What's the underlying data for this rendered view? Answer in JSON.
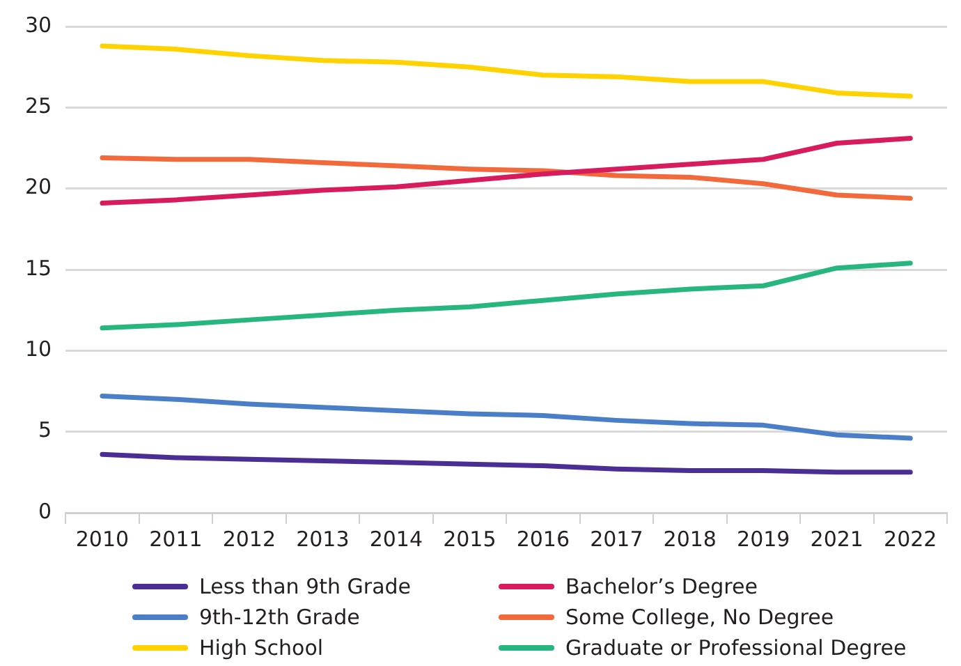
{
  "chart_data": {
    "type": "line",
    "categories": [
      "2010",
      "2011",
      "2012",
      "2013",
      "2014",
      "2015",
      "2016",
      "2017",
      "2018",
      "2019",
      "2021",
      "2022"
    ],
    "series": [
      {
        "name": "Less than 9th Grade",
        "color": "#4b2e94",
        "values": [
          3.6,
          3.4,
          3.3,
          3.2,
          3.1,
          3.0,
          2.9,
          2.7,
          2.6,
          2.6,
          2.5,
          2.5
        ]
      },
      {
        "name": "9th-12th Grade",
        "color": "#4a7fc8",
        "values": [
          7.2,
          7.0,
          6.7,
          6.5,
          6.3,
          6.1,
          6.0,
          5.7,
          5.5,
          5.4,
          4.8,
          4.6
        ]
      },
      {
        "name": "High School",
        "color": "#ffd200",
        "values": [
          28.8,
          28.6,
          28.2,
          27.9,
          27.8,
          27.5,
          27.0,
          26.9,
          26.6,
          26.6,
          25.9,
          25.7
        ]
      },
      {
        "name": "Bachelor’s Degree",
        "color": "#d81b5c",
        "values": [
          19.1,
          19.3,
          19.6,
          19.9,
          20.1,
          20.5,
          20.9,
          21.2,
          21.5,
          21.8,
          22.8,
          23.1
        ]
      },
      {
        "name": "Some College, No Degree",
        "color": "#f26a3c",
        "values": [
          21.9,
          21.8,
          21.8,
          21.6,
          21.4,
          21.2,
          21.1,
          20.8,
          20.7,
          20.3,
          19.6,
          19.4
        ]
      },
      {
        "name": "Graduate or Professional Degree",
        "color": "#27b77e",
        "values": [
          11.4,
          11.6,
          11.9,
          12.2,
          12.5,
          12.7,
          13.1,
          13.5,
          13.8,
          14.0,
          15.1,
          15.4
        ]
      }
    ],
    "ylim": [
      0,
      30
    ],
    "yticks": [
      0,
      5,
      10,
      15,
      20,
      25,
      30
    ],
    "grid": "y",
    "legend": "bottom",
    "marker": "none",
    "line_style": "solid"
  }
}
